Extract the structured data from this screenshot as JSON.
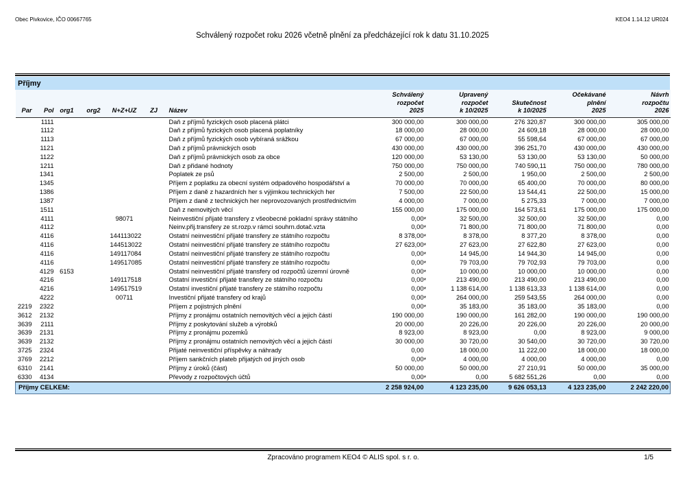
{
  "page_header": {
    "left": "Obec Pivkovice, IČO 00667765",
    "right": "KEO4 1.14.12 UR024"
  },
  "title": "Schválený rozpočet roku 2026 včetně plnění za předcházející rok k datu 31.10.2025",
  "section": {
    "title": "Příjmy"
  },
  "colors": {
    "section_bar": "#bfe0f8",
    "header_bg": "#f2f7fc",
    "total_bg": "#bfe0f8"
  },
  "table": {
    "columns": {
      "par": "Par",
      "pol": "Pol",
      "org1": "org1",
      "org2": "org2",
      "nzuz": "N+Z+UZ",
      "zj": "ZJ",
      "nazev": "Název",
      "amounts": [
        [
          "Schválený",
          "rozpočet",
          "2025"
        ],
        [
          "Upravený",
          "rozpočet",
          "k 10/2025"
        ],
        [
          "Skutečnost",
          "k 10/2025"
        ],
        [
          "Očekávané",
          "plnění",
          "2025"
        ],
        [
          "Návrh",
          "rozpočtu",
          "2026"
        ]
      ]
    },
    "rows": [
      {
        "par": "",
        "pol": "1111",
        "org1": "",
        "org2": "",
        "nzuz": "",
        "zj": "",
        "nazev": "Daň z příjmů fyzických osob placená plátci",
        "values": [
          "300 000,00",
          "300 000,00",
          "276 320,87",
          "300 000,00",
          "305 000,00"
        ]
      },
      {
        "par": "",
        "pol": "1112",
        "org1": "",
        "org2": "",
        "nzuz": "",
        "zj": "",
        "nazev": "Daň z příjmů fyzických osob placená poplatníky",
        "values": [
          "18 000,00",
          "28 000,00",
          "24 609,18",
          "28 000,00",
          "28 000,00"
        ]
      },
      {
        "par": "",
        "pol": "1113",
        "org1": "",
        "org2": "",
        "nzuz": "",
        "zj": "",
        "nazev": "Daň z příjmů fyzických osob vybíraná srážkou",
        "values": [
          "67 000,00",
          "67 000,00",
          "55 598,64",
          "67 000,00",
          "67 000,00"
        ]
      },
      {
        "par": "",
        "pol": "1121",
        "org1": "",
        "org2": "",
        "nzuz": "",
        "zj": "",
        "nazev": "Daň z příjmů právnických osob",
        "values": [
          "430 000,00",
          "430 000,00",
          "396 251,70",
          "430 000,00",
          "430 000,00"
        ]
      },
      {
        "par": "",
        "pol": "1122",
        "org1": "",
        "org2": "",
        "nzuz": "",
        "zj": "",
        "nazev": "Daň z příjmů právnických osob za obce",
        "values": [
          "120 000,00",
          "53 130,00",
          "53 130,00",
          "53 130,00",
          "50 000,00"
        ]
      },
      {
        "par": "",
        "pol": "1211",
        "org1": "",
        "org2": "",
        "nzuz": "",
        "zj": "",
        "nazev": "Daň z přidané hodnoty",
        "values": [
          "750 000,00",
          "750 000,00",
          "740 590,11",
          "750 000,00",
          "780 000,00"
        ]
      },
      {
        "par": "",
        "pol": "1341",
        "org1": "",
        "org2": "",
        "nzuz": "",
        "zj": "",
        "nazev": "Poplatek ze psů",
        "values": [
          "2 500,00",
          "2 500,00",
          "1 950,00",
          "2 500,00",
          "2 500,00"
        ]
      },
      {
        "par": "",
        "pol": "1345",
        "org1": "",
        "org2": "",
        "nzuz": "",
        "zj": "",
        "nazev": "Příjem z poplatku za obecní systém odpadového hospodářství a",
        "values": [
          "70 000,00",
          "70 000,00",
          "65 400,00",
          "70 000,00",
          "80 000,00"
        ]
      },
      {
        "par": "",
        "pol": "1386",
        "org1": "",
        "org2": "",
        "nzuz": "",
        "zj": "",
        "nazev": "Příjem z daně z hazardních her s výjimkou technických her",
        "values": [
          "7 500,00",
          "22 500,00",
          "13 544,41",
          "22 500,00",
          "15 000,00"
        ]
      },
      {
        "par": "",
        "pol": "1387",
        "org1": "",
        "org2": "",
        "nzuz": "",
        "zj": "",
        "nazev": "Příjem z daně z technických her neprovozovaných prostřednictvím",
        "values": [
          "4 000,00",
          "7 000,00",
          "5 275,33",
          "7 000,00",
          "7 000,00"
        ]
      },
      {
        "par": "",
        "pol": "1511",
        "org1": "",
        "org2": "",
        "nzuz": "",
        "zj": "",
        "nazev": "Daň z nemovitých věcí",
        "values": [
          "155 000,00",
          "175 000,00",
          "164 573,61",
          "175 000,00",
          "175 000,00"
        ]
      },
      {
        "par": "",
        "pol": "4111",
        "org1": "",
        "org2": "",
        "nzuz": "98071",
        "zj": "",
        "nazev": "Neinvestiční přijaté transfery z všeobecné pokladní správy státního",
        "values": [
          "0,00*",
          "32 500,00",
          "32 500,00",
          "32 500,00",
          "0,00"
        ]
      },
      {
        "par": "",
        "pol": "4112",
        "org1": "",
        "org2": "",
        "nzuz": "",
        "zj": "",
        "nazev": "Neinv.přij.transfery ze st.rozp.v rámci souhrn.dotač.vzta",
        "values": [
          "0,00*",
          "71 800,00",
          "71 800,00",
          "71 800,00",
          "0,00"
        ]
      },
      {
        "par": "",
        "pol": "4116",
        "org1": "",
        "org2": "",
        "nzuz": "144113022",
        "zj": "",
        "nazev": "Ostatní neinvestiční přijaté transfery ze státního rozpočtu",
        "values": [
          "8 378,00*",
          "8 378,00",
          "8 377,20",
          "8 378,00",
          "0,00"
        ]
      },
      {
        "par": "",
        "pol": "4116",
        "org1": "",
        "org2": "",
        "nzuz": "144513022",
        "zj": "",
        "nazev": "Ostatní neinvestiční přijaté transfery ze státního rozpočtu",
        "values": [
          "27 623,00*",
          "27 623,00",
          "27 622,80",
          "27 623,00",
          "0,00"
        ]
      },
      {
        "par": "",
        "pol": "4116",
        "org1": "",
        "org2": "",
        "nzuz": "149117084",
        "zj": "",
        "nazev": "Ostatní neinvestiční přijaté transfery ze státního rozpočtu",
        "values": [
          "0,00*",
          "14 945,00",
          "14 944,30",
          "14 945,00",
          "0,00"
        ]
      },
      {
        "par": "",
        "pol": "4116",
        "org1": "",
        "org2": "",
        "nzuz": "149517085",
        "zj": "",
        "nazev": "Ostatní neinvestiční přijaté transfery ze státního rozpočtu",
        "values": [
          "0,00*",
          "79 703,00",
          "79 702,93",
          "79 703,00",
          "0,00"
        ]
      },
      {
        "par": "",
        "pol": "4129",
        "org1": "6153",
        "org2": "",
        "nzuz": "",
        "zj": "",
        "nazev": "Ostatní neinvestiční přijaté transfery od rozpočtů územní úrovně",
        "values": [
          "0,00*",
          "10 000,00",
          "10 000,00",
          "10 000,00",
          "0,00"
        ]
      },
      {
        "par": "",
        "pol": "4216",
        "org1": "",
        "org2": "",
        "nzuz": "149117518",
        "zj": "",
        "nazev": "Ostatní investiční přijaté transfery ze státního rozpočtu",
        "values": [
          "0,00*",
          "213 490,00",
          "213 490,00",
          "213 490,00",
          "0,00"
        ]
      },
      {
        "par": "",
        "pol": "4216",
        "org1": "",
        "org2": "",
        "nzuz": "149517519",
        "zj": "",
        "nazev": "Ostatní investiční přijaté transfery ze státního rozpočtu",
        "values": [
          "0,00*",
          "1 138 614,00",
          "1 138 613,33",
          "1 138 614,00",
          "0,00"
        ]
      },
      {
        "par": "",
        "pol": "4222",
        "org1": "",
        "org2": "",
        "nzuz": "00711",
        "zj": "",
        "nazev": "Investiční přijaté transfery od krajů",
        "values": [
          "0,00*",
          "264 000,00",
          "259 543,55",
          "264 000,00",
          "0,00"
        ]
      },
      {
        "par": "2219",
        "pol": "2322",
        "org1": "",
        "org2": "",
        "nzuz": "",
        "zj": "",
        "nazev": "Příjem z pojistných plnění",
        "values": [
          "0,00*",
          "35 183,00",
          "35 183,00",
          "35 183,00",
          "0,00"
        ]
      },
      {
        "par": "3612",
        "pol": "2132",
        "org1": "",
        "org2": "",
        "nzuz": "",
        "zj": "",
        "nazev": "Příjmy z pronájmu ostatních nemovitých věcí a jejich částí",
        "values": [
          "190 000,00",
          "190 000,00",
          "161 282,00",
          "190 000,00",
          "190 000,00"
        ]
      },
      {
        "par": "3639",
        "pol": "2111",
        "org1": "",
        "org2": "",
        "nzuz": "",
        "zj": "",
        "nazev": "Příjmy z poskytování služeb a výrobků",
        "values": [
          "20 000,00",
          "20 226,00",
          "20 226,00",
          "20 226,00",
          "20 000,00"
        ]
      },
      {
        "par": "3639",
        "pol": "2131",
        "org1": "",
        "org2": "",
        "nzuz": "",
        "zj": "",
        "nazev": "Příjmy z pronájmu pozemků",
        "values": [
          "8 923,00",
          "8 923,00",
          "0,00",
          "8 923,00",
          "9 000,00"
        ]
      },
      {
        "par": "3639",
        "pol": "2132",
        "org1": "",
        "org2": "",
        "nzuz": "",
        "zj": "",
        "nazev": "Příjmy z pronájmu ostatních nemovitých věcí a jejich částí",
        "values": [
          "30 000,00",
          "30 720,00",
          "30 540,00",
          "30 720,00",
          "30 720,00"
        ]
      },
      {
        "par": "3725",
        "pol": "2324",
        "org1": "",
        "org2": "",
        "nzuz": "",
        "zj": "",
        "nazev": "Přijaté neinvestiční příspěvky a náhrady",
        "values": [
          "0,00",
          "18 000,00",
          "11 222,00",
          "18 000,00",
          "18 000,00"
        ]
      },
      {
        "par": "3769",
        "pol": "2212",
        "org1": "",
        "org2": "",
        "nzuz": "",
        "zj": "",
        "nazev": "Příjem sankčních plateb přijatých od jiných osob",
        "values": [
          "0,00*",
          "4 000,00",
          "4 000,00",
          "4 000,00",
          "0,00"
        ]
      },
      {
        "par": "6310",
        "pol": "2141",
        "org1": "",
        "org2": "",
        "nzuz": "",
        "zj": "",
        "nazev": "Příjmy z úroků (část)",
        "values": [
          "50 000,00",
          "50 000,00",
          "27 210,91",
          "50 000,00",
          "35 000,00"
        ]
      },
      {
        "par": "6330",
        "pol": "4134",
        "org1": "",
        "org2": "",
        "nzuz": "",
        "zj": "",
        "nazev": "Převody z rozpočtových účtů",
        "values": [
          "0,00*",
          "0,00",
          "5 682 551,26",
          "0,00",
          "0,00"
        ]
      }
    ],
    "total": {
      "label": "Příjmy CELKEM:",
      "values": [
        "2 258 924,00",
        "4 123 235,00",
        "9 626 053,13",
        "4 123 235,00",
        "2 242 220,00"
      ]
    }
  },
  "footer": {
    "center": "Zpracováno programem KEO4 © ALIS spol. s r. o.",
    "page": "1/5"
  }
}
